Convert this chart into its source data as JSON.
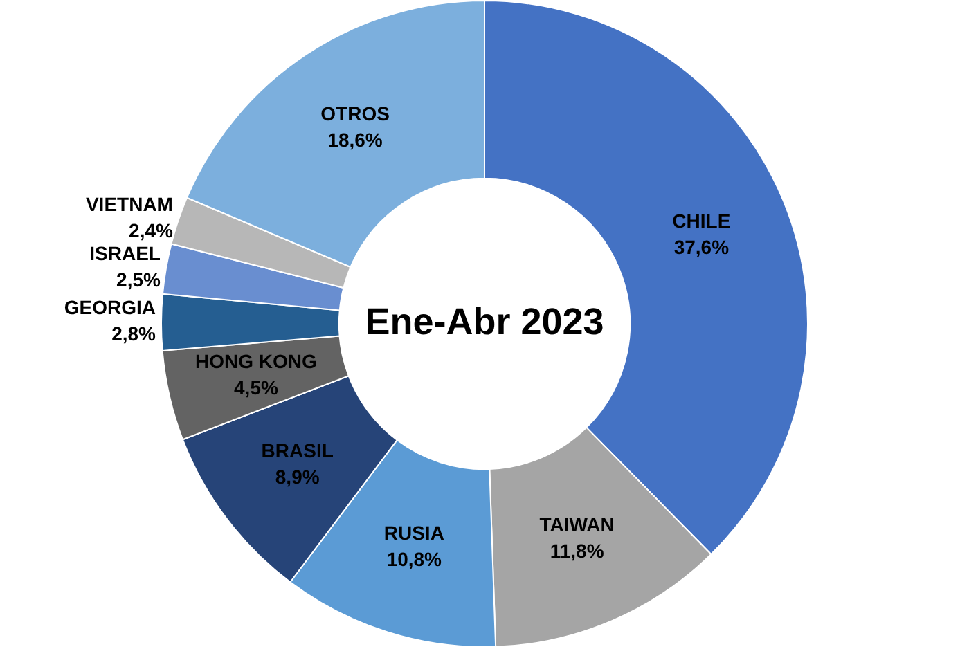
{
  "chart_data": {
    "type": "donut",
    "title": "Ene-Abr 2023",
    "categories": [
      "CHILE",
      "TAIWAN",
      "RUSIA",
      "BRASIL",
      "HONG KONG",
      "GEORGIA",
      "ISRAEL",
      "VIETNAM",
      "OTROS"
    ],
    "values": [
      37.6,
      11.8,
      10.8,
      8.9,
      4.5,
      2.8,
      2.5,
      2.4,
      18.6
    ],
    "value_labels": [
      "37,6%",
      "11,8%",
      "10,8%",
      "8,9%",
      "4,5%",
      "2,8%",
      "2,5%",
      "2,4%",
      "18,6%"
    ],
    "colors": [
      "#4472c4",
      "#a5a5a5",
      "#5b9bd5",
      "#264478",
      "#636363",
      "#255e91",
      "#698ed0",
      "#b7b7b7",
      "#7cafdd"
    ],
    "legend": false
  }
}
